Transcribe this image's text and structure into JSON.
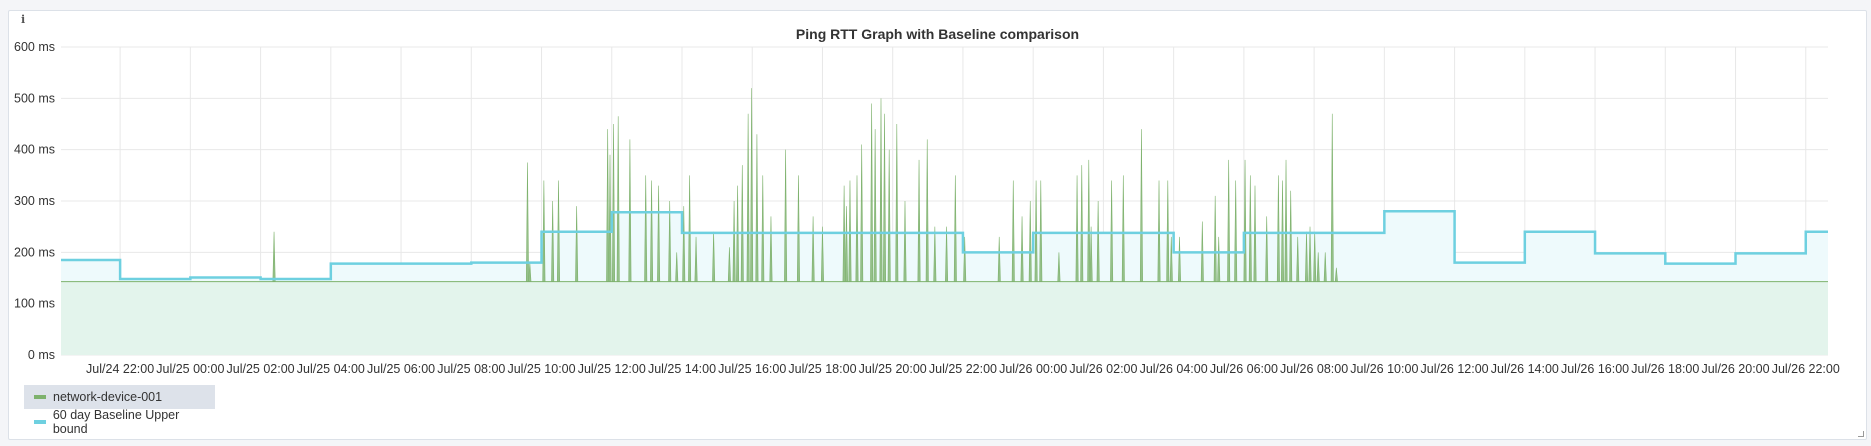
{
  "panel": {
    "info_icon": "i",
    "title": "Ping RTT Graph with Baseline comparison"
  },
  "colors": {
    "rtt": "#7eb26d",
    "rtt_fill": "#e3f4ec",
    "baseline": "#6ed0e0",
    "baseline_fill": "#eefafc",
    "grid": "#e8e8e8"
  },
  "chart_data": {
    "type": "line",
    "title": "Ping RTT Graph with Baseline comparison",
    "xlim": [
      "Jul/24 20:19",
      "Jul/26 22:38"
    ],
    "ylim": [
      0,
      600
    ],
    "yticks": [
      "0 ms",
      "100 ms",
      "200 ms",
      "300 ms",
      "400 ms",
      "500 ms",
      "600 ms"
    ],
    "ytick_values": [
      0,
      100,
      200,
      300,
      400,
      500,
      600
    ],
    "xticks": [
      "Jul/24 22:00",
      "Jul/25 00:00",
      "Jul/25 02:00",
      "Jul/25 04:00",
      "Jul/25 06:00",
      "Jul/25 08:00",
      "Jul/25 10:00",
      "Jul/25 12:00",
      "Jul/25 14:00",
      "Jul/25 16:00",
      "Jul/25 18:00",
      "Jul/25 20:00",
      "Jul/25 22:00",
      "Jul/26 00:00",
      "Jul/26 02:00",
      "Jul/26 04:00",
      "Jul/26 06:00",
      "Jul/26 08:00",
      "Jul/26 10:00",
      "Jul/26 12:00",
      "Jul/26 14:00",
      "Jul/26 16:00",
      "Jul/26 18:00",
      "Jul/26 20:00",
      "Jul/26 22:00"
    ],
    "grid": true,
    "legend": "bottom-left",
    "series": [
      {
        "name": "network-device-001",
        "typical_value": 143,
        "spikes": [
          [
            "Jul/25 02:23",
            240
          ],
          [
            "Jul/25 09:36",
            375
          ],
          [
            "Jul/25 09:40",
            180
          ],
          [
            "Jul/25 10:04",
            340
          ],
          [
            "Jul/25 10:19",
            300
          ],
          [
            "Jul/25 10:29",
            340
          ],
          [
            "Jul/25 11:00",
            290
          ],
          [
            "Jul/25 11:53",
            440
          ],
          [
            "Jul/25 11:57",
            390
          ],
          [
            "Jul/25 12:03",
            450
          ],
          [
            "Jul/25 12:11",
            465
          ],
          [
            "Jul/25 12:31",
            420
          ],
          [
            "Jul/25 12:58",
            350
          ],
          [
            "Jul/25 13:08",
            340
          ],
          [
            "Jul/25 13:20",
            330
          ],
          [
            "Jul/25 13:39",
            300
          ],
          [
            "Jul/25 13:51",
            200
          ],
          [
            "Jul/25 14:03",
            290
          ],
          [
            "Jul/25 14:13",
            350
          ],
          [
            "Jul/25 14:24",
            230
          ],
          [
            "Jul/25 14:54",
            240
          ],
          [
            "Jul/25 15:21",
            210
          ],
          [
            "Jul/25 15:29",
            300
          ],
          [
            "Jul/25 15:35",
            330
          ],
          [
            "Jul/25 15:43",
            370
          ],
          [
            "Jul/25 15:53",
            470
          ],
          [
            "Jul/25 15:59",
            520
          ],
          [
            "Jul/25 16:08",
            430
          ],
          [
            "Jul/25 16:18",
            350
          ],
          [
            "Jul/25 16:32",
            270
          ],
          [
            "Jul/25 16:57",
            400
          ],
          [
            "Jul/25 17:19",
            350
          ],
          [
            "Jul/25 17:44",
            270
          ],
          [
            "Jul/25 18:00",
            250
          ],
          [
            "Jul/25 18:37",
            330
          ],
          [
            "Jul/25 18:41",
            290
          ],
          [
            "Jul/25 18:47",
            340
          ],
          [
            "Jul/25 18:59",
            350
          ],
          [
            "Jul/25 19:07",
            410
          ],
          [
            "Jul/25 19:24",
            490
          ],
          [
            "Jul/25 19:30",
            440
          ],
          [
            "Jul/25 19:40",
            500
          ],
          [
            "Jul/25 19:46",
            470
          ],
          [
            "Jul/25 19:54",
            400
          ],
          [
            "Jul/25 20:07",
            450
          ],
          [
            "Jul/25 20:21",
            300
          ],
          [
            "Jul/25 20:45",
            380
          ],
          [
            "Jul/25 20:59",
            420
          ],
          [
            "Jul/25 21:12",
            250
          ],
          [
            "Jul/25 21:32",
            250
          ],
          [
            "Jul/25 21:47",
            350
          ],
          [
            "Jul/25 22:03",
            230
          ],
          [
            "Jul/25 23:02",
            230
          ],
          [
            "Jul/25 23:26",
            340
          ],
          [
            "Jul/25 23:41",
            270
          ],
          [
            "Jul/25 23:55",
            300
          ],
          [
            "Jul/26 00:05",
            340
          ],
          [
            "Jul/26 00:13",
            340
          ],
          [
            "Jul/26 00:44",
            200
          ],
          [
            "Jul/26 01:15",
            350
          ],
          [
            "Jul/26 01:23",
            370
          ],
          [
            "Jul/26 01:35",
            380
          ],
          [
            "Jul/26 01:39",
            250
          ],
          [
            "Jul/26 01:51",
            300
          ],
          [
            "Jul/26 02:14",
            340
          ],
          [
            "Jul/26 02:34",
            350
          ],
          [
            "Jul/26 03:05",
            440
          ],
          [
            "Jul/26 03:35",
            340
          ],
          [
            "Jul/26 03:50",
            340
          ],
          [
            "Jul/26 03:56",
            230
          ],
          [
            "Jul/26 04:10",
            230
          ],
          [
            "Jul/26 04:49",
            260
          ],
          [
            "Jul/26 05:11",
            310
          ],
          [
            "Jul/26 05:17",
            230
          ],
          [
            "Jul/26 05:34",
            380
          ],
          [
            "Jul/26 05:46",
            340
          ],
          [
            "Jul/26 06:02",
            380
          ],
          [
            "Jul/26 06:11",
            350
          ],
          [
            "Jul/26 06:19",
            330
          ],
          [
            "Jul/26 06:39",
            270
          ],
          [
            "Jul/26 06:59",
            350
          ],
          [
            "Jul/26 07:06",
            340
          ],
          [
            "Jul/26 07:12",
            380
          ],
          [
            "Jul/26 07:20",
            320
          ],
          [
            "Jul/26 07:32",
            230
          ],
          [
            "Jul/26 07:47",
            240
          ],
          [
            "Jul/26 07:53",
            250
          ],
          [
            "Jul/26 08:01",
            240
          ],
          [
            "Jul/26 08:07",
            200
          ],
          [
            "Jul/26 08:19",
            200
          ],
          [
            "Jul/26 08:31",
            470
          ],
          [
            "Jul/26 08:38",
            170
          ]
        ]
      },
      {
        "name": "60 day Baseline Upper bound",
        "steps": [
          [
            "Jul/24 20:19",
            185
          ],
          [
            "Jul/24 22:00",
            148
          ],
          [
            "Jul/25 00:00",
            151
          ],
          [
            "Jul/25 02:00",
            148
          ],
          [
            "Jul/25 04:00",
            178
          ],
          [
            "Jul/25 08:00",
            180
          ],
          [
            "Jul/25 10:00",
            240
          ],
          [
            "Jul/25 12:00",
            278
          ],
          [
            "Jul/25 14:00",
            238
          ],
          [
            "Jul/25 22:00",
            200
          ],
          [
            "Jul/26 00:00",
            238
          ],
          [
            "Jul/26 04:00",
            200
          ],
          [
            "Jul/26 06:00",
            238
          ],
          [
            "Jul/26 10:00",
            280
          ],
          [
            "Jul/26 12:00",
            180
          ],
          [
            "Jul/26 14:00",
            240
          ],
          [
            "Jul/26 16:00",
            198
          ],
          [
            "Jul/26 18:00",
            178
          ],
          [
            "Jul/26 20:00",
            198
          ],
          [
            "Jul/26 22:00",
            240
          ]
        ]
      }
    ]
  }
}
